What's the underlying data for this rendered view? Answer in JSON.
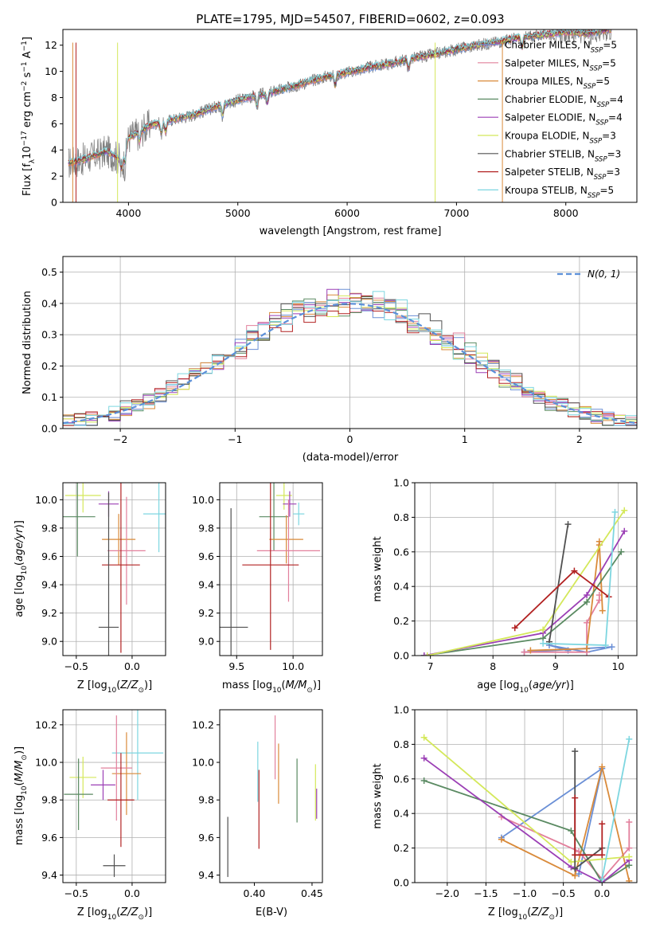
{
  "chart_data": [
    {
      "id": "spectrum",
      "type": "line",
      "title": "PLATE=1795, MJD=54507, FIBERID=0602, z=0.093",
      "xlabel": "wavelength [Angstrom, rest frame]",
      "ylabel": "Flux [f_λ10^-17 erg cm^-2 s^-1 A^-1]",
      "xlim": [
        3400,
        8650
      ],
      "ylim": [
        0,
        13.2
      ],
      "xticks": [
        4000,
        5000,
        6000,
        7000,
        8000
      ],
      "yticks": [
        0,
        2,
        4,
        6,
        8,
        10,
        12
      ],
      "data_color": "#808080",
      "data_points": [
        [
          3450,
          3.0
        ],
        [
          3600,
          3.3
        ],
        [
          3800,
          3.9
        ],
        [
          3900,
          3.4
        ],
        [
          4000,
          4.9
        ],
        [
          4200,
          5.9
        ],
        [
          4400,
          6.3
        ],
        [
          4600,
          6.7
        ],
        [
          4800,
          7.3
        ],
        [
          5000,
          7.8
        ],
        [
          5200,
          8.2
        ],
        [
          5400,
          8.6
        ],
        [
          5600,
          9.1
        ],
        [
          5800,
          9.6
        ],
        [
          6000,
          9.9
        ],
        [
          6200,
          10.3
        ],
        [
          6400,
          10.6
        ],
        [
          6600,
          11.0
        ],
        [
          6800,
          11.3
        ],
        [
          7000,
          11.7
        ],
        [
          7200,
          12.0
        ],
        [
          7400,
          12.3
        ],
        [
          7600,
          12.6
        ],
        [
          7800,
          12.8
        ],
        [
          8000,
          13.0
        ],
        [
          8200,
          12.9
        ],
        [
          8400,
          13.2
        ]
      ],
      "legend_position": "upper right",
      "series": [
        {
          "name": "Chabrier MILES, N_SSP=5",
          "label": "Chabrier MILES, N",
          "sub": "SSP",
          "suffix": "=5",
          "color": "#6a8fd6"
        },
        {
          "name": "Salpeter MILES, N_SSP=5",
          "label": "Salpeter MILES, N",
          "sub": "SSP",
          "suffix": "=5",
          "color": "#e2809c"
        },
        {
          "name": "Kroupa MILES, N_SSP=5",
          "label": "Kroupa MILES, N",
          "sub": "SSP",
          "suffix": "=5",
          "color": "#d98a3a"
        },
        {
          "name": "Chabrier ELODIE, N_SSP=4",
          "label": "Chabrier ELODIE, N",
          "sub": "SSP",
          "suffix": "=4",
          "color": "#5a8a62"
        },
        {
          "name": "Salpeter ELODIE, N_SSP=4",
          "label": "Salpeter ELODIE, N",
          "sub": "SSP",
          "suffix": "=4",
          "color": "#9b3fb5"
        },
        {
          "name": "Kroupa ELODIE, N_SSP=3",
          "label": "Kroupa ELODIE, N",
          "sub": "SSP",
          "suffix": "=3",
          "color": "#d4e85a"
        },
        {
          "name": "Chabrier STELIB, N_SSP=3",
          "label": "Chabrier STELIB, N",
          "sub": "SSP",
          "suffix": "=3",
          "color": "#505050"
        },
        {
          "name": "Salpeter STELIB, N_SSP=3",
          "label": "Salpeter STELIB, N",
          "sub": "SSP",
          "suffix": "=3",
          "color": "#b22222"
        },
        {
          "name": "Kroupa STELIB, N_SSP=5",
          "label": "Kroupa STELIB, N",
          "sub": "SSP",
          "suffix": "=5",
          "color": "#7dd6e0"
        }
      ]
    },
    {
      "id": "residuals",
      "type": "line",
      "xlabel": "(data-model)/error",
      "ylabel": "Normed distribution",
      "xlim": [
        -2.5,
        2.5
      ],
      "ylim": [
        0,
        0.55
      ],
      "xticks": [
        -2,
        -1,
        0,
        1,
        2
      ],
      "yticks": [
        0.0,
        0.1,
        0.2,
        0.3,
        0.4,
        0.5
      ],
      "grid": true,
      "legend": {
        "label": "N(0, 1)",
        "color": "#5b8fd9",
        "position": "upper right"
      },
      "histogram_bin_width": 0.1
    },
    {
      "id": "z-age",
      "type": "scatter",
      "xlabel": "Z [log10(Z/Z⊙)]",
      "ylabel": "age  [log10(age/yr)]",
      "xlim": [
        -0.62,
        0.3
      ],
      "ylim": [
        8.9,
        10.12
      ],
      "xticks": [
        -0.5,
        0.0
      ],
      "yticks": [
        9.0,
        9.2,
        9.4,
        9.6,
        9.8,
        10.0
      ],
      "grid": true,
      "points": [
        {
          "x": -0.44,
          "y": 10.03,
          "xerr": 0.16,
          "yerr": 0.12,
          "color": "#d4e85a"
        },
        {
          "x": -0.21,
          "y": 9.97,
          "xerr": 0.09,
          "yerr": 0.09,
          "color": "#9b3fb5"
        },
        {
          "x": -0.49,
          "y": 9.88,
          "xerr": 0.16,
          "yerr": 0.28,
          "color": "#5a8a62"
        },
        {
          "x": 0.24,
          "y": 9.9,
          "xerr": 0.14,
          "yerr": 0.27,
          "color": "#7dd6e0"
        },
        {
          "x": -0.12,
          "y": 9.72,
          "xerr": 0.15,
          "yerr": 0.18,
          "color": "#d98a3a"
        },
        {
          "x": -0.05,
          "y": 9.64,
          "xerr": 0.17,
          "yerr": 0.38,
          "color": "#e2809c"
        },
        {
          "x": -0.1,
          "y": 9.54,
          "xerr": 0.17,
          "yerr": 0.62,
          "color": "#b22222"
        },
        {
          "x": -0.21,
          "y": 9.1,
          "xerr": 0.09,
          "yerr": 0.95,
          "color": "#505050"
        }
      ]
    },
    {
      "id": "mass-age",
      "type": "scatter",
      "xlabel": "mass [log10(M/M⊙)]",
      "ylabel": "",
      "xlim": [
        9.35,
        10.26
      ],
      "ylim": [
        8.9,
        10.12
      ],
      "xticks": [
        9.5,
        10.0
      ],
      "yticks": [
        9.0,
        9.2,
        9.4,
        9.6,
        9.8,
        10.0
      ],
      "grid": true,
      "points": [
        {
          "x": 9.92,
          "y": 10.03,
          "xerr": 0.07,
          "yerr": 0.1,
          "color": "#d4e85a"
        },
        {
          "x": 9.97,
          "y": 9.97,
          "xerr": 0.06,
          "yerr": 0.09,
          "color": "#9b3fb5"
        },
        {
          "x": 9.83,
          "y": 9.88,
          "xerr": 0.13,
          "yerr": 0.24,
          "color": "#5a8a62"
        },
        {
          "x": 10.05,
          "y": 9.9,
          "xerr": 0.05,
          "yerr": 0.08,
          "color": "#7dd6e0"
        },
        {
          "x": 9.94,
          "y": 9.72,
          "xerr": 0.15,
          "yerr": 0.17,
          "color": "#d98a3a"
        },
        {
          "x": 9.96,
          "y": 9.64,
          "xerr": 0.28,
          "yerr": 0.36,
          "color": "#e2809c"
        },
        {
          "x": 9.8,
          "y": 9.54,
          "xerr": 0.25,
          "yerr": 0.6,
          "color": "#b22222"
        },
        {
          "x": 9.45,
          "y": 9.1,
          "xerr": 0.15,
          "yerr": 0.84,
          "color": "#505050"
        }
      ]
    },
    {
      "id": "mass-weight-age",
      "type": "line",
      "xlabel": "age  [log10(age/yr)]",
      "ylabel": "mass weight",
      "xlim": [
        6.75,
        10.3
      ],
      "ylim": [
        0,
        1.0
      ],
      "xticks": [
        7,
        8,
        9,
        10
      ],
      "yticks": [
        0.0,
        0.2,
        0.4,
        0.6,
        0.8,
        1.0
      ],
      "grid": true,
      "series": [
        {
          "color": "#6a8fd6",
          "x": [
            8.5,
            9.9,
            9.5,
            8.9,
            9.2
          ],
          "y": [
            0.02,
            0.05,
            0.02,
            0.06,
            0.03
          ]
        },
        {
          "color": "#e2809c",
          "x": [
            8.5,
            9.5,
            9.5,
            9.7,
            9.7
          ],
          "y": [
            0.02,
            0.02,
            0.19,
            0.32,
            0.35
          ]
        },
        {
          "color": "#d98a3a",
          "x": [
            8.6,
            9.5,
            9.7,
            9.75,
            9.7
          ],
          "y": [
            0.03,
            0.04,
            0.66,
            0.26,
            0.64
          ]
        },
        {
          "color": "#5a8a62",
          "x": [
            6.9,
            8.8,
            9.5,
            10.05
          ],
          "y": [
            0.0,
            0.1,
            0.31,
            0.6
          ]
        },
        {
          "color": "#9b3fb5",
          "x": [
            6.9,
            8.8,
            9.5,
            10.1
          ],
          "y": [
            0.0,
            0.13,
            0.35,
            0.72
          ]
        },
        {
          "color": "#d4e85a",
          "x": [
            6.95,
            8.8,
            10.1
          ],
          "y": [
            0.0,
            0.15,
            0.84
          ]
        },
        {
          "color": "#505050",
          "x": [
            8.9,
            9.2
          ],
          "y": [
            0.08,
            0.76
          ]
        },
        {
          "color": "#b22222",
          "x": [
            8.35,
            9.3,
            9.85
          ],
          "y": [
            0.16,
            0.49,
            0.34
          ]
        },
        {
          "color": "#7dd6e0",
          "x": [
            8.8,
            9.8,
            9.95
          ],
          "y": [
            0.07,
            0.06,
            0.83
          ]
        }
      ]
    },
    {
      "id": "z-mass",
      "type": "scatter",
      "xlabel": "Z [log10(Z/Z⊙)]",
      "ylabel": "mass [log10(M/M⊙)]",
      "xlim": [
        -0.62,
        0.3
      ],
      "ylim": [
        9.36,
        10.28
      ],
      "xticks": [
        -0.5,
        0.0
      ],
      "yticks": [
        9.4,
        9.6,
        9.8,
        10.0,
        10.2
      ],
      "grid": true,
      "points": [
        {
          "x": -0.44,
          "y": 9.92,
          "xerr": 0.12,
          "yerr": 0.11,
          "color": "#d4e85a"
        },
        {
          "x": -0.26,
          "y": 9.88,
          "xerr": 0.11,
          "yerr": 0.08,
          "color": "#9b3fb5"
        },
        {
          "x": -0.48,
          "y": 9.83,
          "xerr": 0.13,
          "yerr": 0.19,
          "color": "#5a8a62"
        },
        {
          "x": 0.05,
          "y": 10.05,
          "xerr": 0.23,
          "yerr": 0.25,
          "color": "#7dd6e0"
        },
        {
          "x": -0.05,
          "y": 9.94,
          "xerr": 0.13,
          "yerr": 0.22,
          "color": "#d98a3a"
        },
        {
          "x": -0.14,
          "y": 9.97,
          "xerr": 0.14,
          "yerr": 0.28,
          "color": "#e2809c"
        },
        {
          "x": -0.1,
          "y": 9.8,
          "xerr": 0.12,
          "yerr": 0.25,
          "color": "#b22222"
        },
        {
          "x": -0.16,
          "y": 9.45,
          "xerr": 0.1,
          "yerr": 0.06,
          "color": "#505050"
        }
      ]
    },
    {
      "id": "ebv-mass",
      "type": "scatter",
      "xlabel": "E(B-V)",
      "ylabel": "",
      "xlim": [
        0.37,
        0.459
      ],
      "ylim": [
        9.36,
        10.28
      ],
      "xticks": [
        0.4,
        0.45
      ],
      "yticks": [
        9.4,
        9.6,
        9.8,
        10.0,
        10.2
      ],
      "points": [
        {
          "x": 0.377,
          "y": 9.55,
          "yerr": 0.16,
          "color": "#505050"
        },
        {
          "x": 0.403,
          "y": 9.95,
          "yerr": 0.16,
          "color": "#7dd6e0"
        },
        {
          "x": 0.404,
          "y": 9.75,
          "yerr": 0.21,
          "color": "#b22222"
        },
        {
          "x": 0.418,
          "y": 10.08,
          "yerr": 0.17,
          "color": "#e2809c"
        },
        {
          "x": 0.421,
          "y": 9.94,
          "yerr": 0.16,
          "color": "#d98a3a"
        },
        {
          "x": 0.437,
          "y": 9.85,
          "yerr": 0.17,
          "color": "#5a8a62"
        },
        {
          "x": 0.453,
          "y": 9.84,
          "yerr": 0.15,
          "color": "#d4e85a"
        },
        {
          "x": 0.454,
          "y": 9.78,
          "yerr": 0.08,
          "color": "#9b3fb5"
        }
      ]
    },
    {
      "id": "mass-weight-z",
      "type": "line",
      "xlabel": "Z [log10(Z/Z⊙)]",
      "ylabel": "mass weight",
      "xlim": [
        -2.42,
        0.45
      ],
      "ylim": [
        0,
        1.0
      ],
      "xticks": [
        -2.0,
        -1.5,
        -1.0,
        -0.5,
        0.0
      ],
      "yticks": [
        0.0,
        0.2,
        0.4,
        0.6,
        0.8,
        1.0
      ],
      "grid": true,
      "series": [
        {
          "color": "#6a8fd6",
          "x": [
            -1.3,
            0.0,
            -0.3
          ],
          "y": [
            0.26,
            0.66,
            0.05
          ]
        },
        {
          "color": "#e2809c",
          "x": [
            -1.3,
            -0.3,
            0.0,
            0.35,
            0.35
          ],
          "y": [
            0.38,
            0.18,
            0.02,
            0.2,
            0.35
          ]
        },
        {
          "color": "#d98a3a",
          "x": [
            -1.3,
            -0.35,
            0.0,
            0.35
          ],
          "y": [
            0.25,
            0.04,
            0.67,
            0.01
          ]
        },
        {
          "color": "#5a8a62",
          "x": [
            -2.3,
            -0.4,
            0.0,
            0.35
          ],
          "y": [
            0.59,
            0.3,
            0.0,
            0.1
          ]
        },
        {
          "color": "#9b3fb5",
          "x": [
            -2.3,
            -0.4,
            0.0,
            0.35
          ],
          "y": [
            0.72,
            0.09,
            0.0,
            0.13
          ]
        },
        {
          "color": "#d4e85a",
          "x": [
            -2.3,
            -0.4,
            0.35
          ],
          "y": [
            0.84,
            0.12,
            0.15
          ]
        },
        {
          "color": "#505050",
          "x": [
            -0.35,
            -0.35,
            0.0
          ],
          "y": [
            0.76,
            0.08,
            0.2
          ]
        },
        {
          "color": "#b22222",
          "x": [
            -0.35,
            -0.35,
            0.0,
            0.0
          ],
          "y": [
            0.49,
            0.16,
            0.16,
            0.34
          ]
        },
        {
          "color": "#7dd6e0",
          "x": [
            0.0,
            0.35
          ],
          "y": [
            0.02,
            0.83
          ]
        }
      ]
    }
  ]
}
